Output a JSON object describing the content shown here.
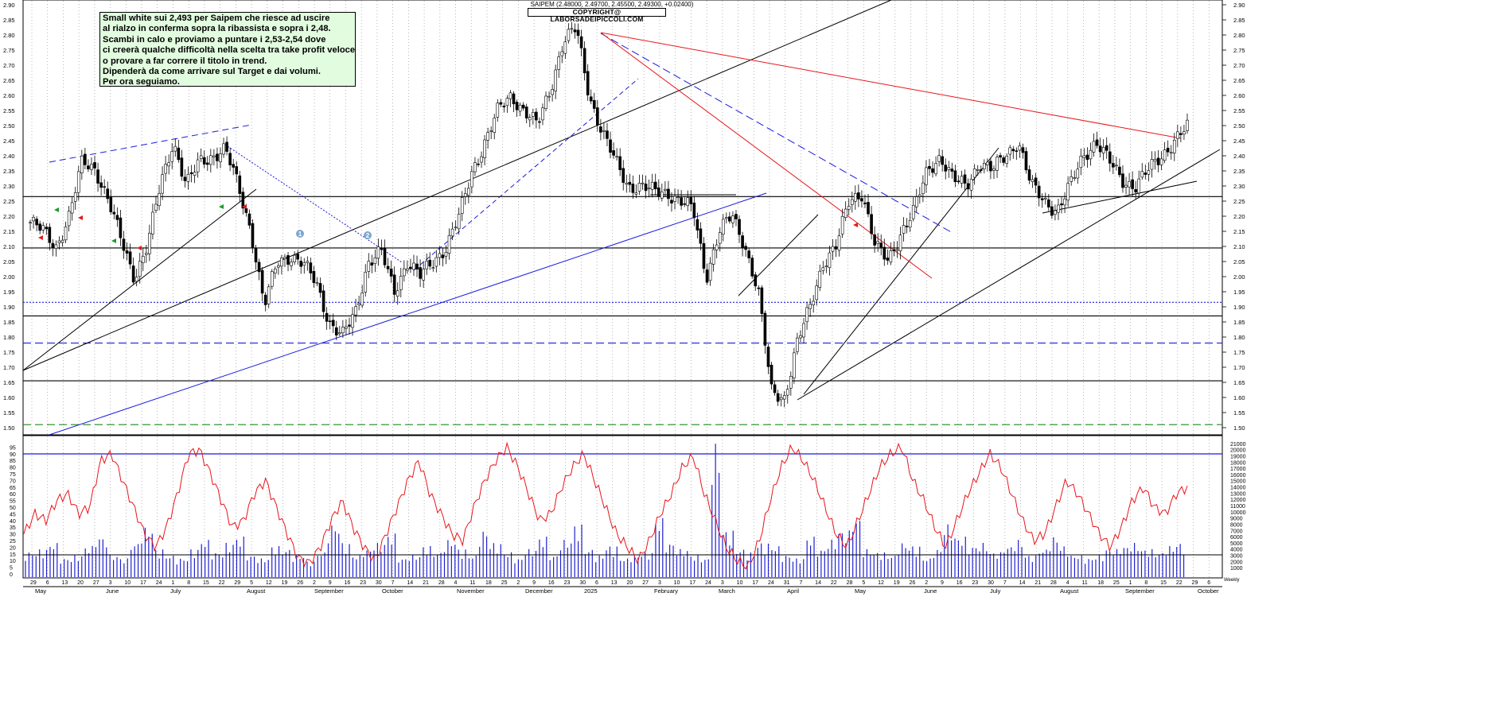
{
  "header": {
    "quote_line": "SAIPEM (2.48000, 2.49700, 2.45500, 2.49300, +0.02400)",
    "copyright": "COPYRIGHT@ LABORSADEIPICCOLI.COM"
  },
  "note": {
    "lines": [
      "Small white sui 2,493 per Saipem che riesce ad uscire",
      "al rialzo in conferma sopra la ribassista e sopra i 2,48.",
      "Scambi in calo e proviamo a puntare i 2,53-2,54 dove",
      "ci creerà qualche difficoltà nella scelta tra take profit veloce",
      "o provare a far correre il titolo in trend.",
      "Dipenderà da come arrivare sul Target e dai volumi.",
      "Per ora seguiamo."
    ]
  },
  "colors": {
    "trend_black": "#000000",
    "trend_red": "#e8151b",
    "trend_blue": "#1a1ae0",
    "green_line": "#1b8a1b",
    "indicator_red": "#e8151b",
    "volume_blue": "#2020d0",
    "note_bg": "#e2fce0"
  },
  "chart_data": [
    {
      "type": "candlestick",
      "title": "SAIPEM",
      "ylim": [
        1.5,
        2.9
      ],
      "y_ticks": [
        "2.90",
        "2.85",
        "2.80",
        "2.75",
        "2.70",
        "2.65",
        "2.60",
        "2.55",
        "2.50",
        "2.45",
        "2.40",
        "2.35",
        "2.30",
        "2.25",
        "2.20",
        "2.15",
        "2.10",
        "2.05",
        "2.00",
        "1.95",
        "1.90",
        "1.85",
        "1.80",
        "1.75",
        "1.70",
        "1.65",
        "1.60",
        "1.55",
        "1.50"
      ],
      "price_path": [
        2.18,
        2.15,
        2.1,
        2.2,
        2.38,
        2.36,
        2.25,
        2.12,
        2.0,
        2.1,
        2.3,
        2.45,
        2.3,
        2.38,
        2.4,
        2.42,
        2.3,
        2.15,
        1.9,
        2.05,
        2.07,
        2.04,
        1.98,
        1.85,
        1.8,
        1.88,
        2.05,
        2.08,
        1.95,
        2.05,
        2.0,
        2.05,
        2.1,
        2.2,
        2.35,
        2.45,
        2.55,
        2.6,
        2.55,
        2.5,
        2.62,
        2.78,
        2.82,
        2.6,
        2.48,
        2.38,
        2.3,
        2.3,
        2.28,
        2.28,
        2.25,
        2.22,
        2.0,
        2.15,
        2.2,
        2.1,
        1.95,
        1.62,
        1.6,
        1.78,
        1.9,
        2.05,
        2.1,
        2.25,
        2.28,
        2.1,
        2.05,
        2.15,
        2.22,
        2.35,
        2.4,
        2.32,
        2.3,
        2.38,
        2.35,
        2.4,
        2.45,
        2.3,
        2.25,
        2.22,
        2.3,
        2.4,
        2.45,
        2.38,
        2.32,
        2.3,
        2.35,
        2.4,
        2.45,
        2.493
      ],
      "horizontal_levels": [
        {
          "value": 2.265,
          "style": "solid-black"
        },
        {
          "value": 2.095,
          "style": "solid-black"
        },
        {
          "value": 1.915,
          "style": "dotted-blue"
        },
        {
          "value": 1.87,
          "style": "solid-black"
        },
        {
          "value": 1.78,
          "style": "dashed-blue"
        },
        {
          "value": 1.655,
          "style": "solid-black"
        },
        {
          "value": 1.51,
          "style": "dashed-green"
        }
      ],
      "markers": [
        "1",
        "2"
      ]
    },
    {
      "type": "line",
      "name": "oscillator",
      "ylim": [
        0,
        100
      ],
      "y_ticks": [
        "95",
        "90",
        "85",
        "80",
        "75",
        "70",
        "65",
        "60",
        "55",
        "50",
        "45",
        "40",
        "35",
        "30",
        "25",
        "20",
        "15",
        "10",
        "5",
        "0"
      ],
      "reference_lines": [
        90,
        15
      ],
      "values": [
        30,
        45,
        40,
        55,
        60,
        45,
        50,
        85,
        90,
        70,
        50,
        30,
        20,
        35,
        60,
        90,
        93,
        75,
        55,
        35,
        40,
        60,
        70,
        50,
        30,
        12,
        8,
        20,
        40,
        55,
        35,
        20,
        10,
        30,
        50,
        70,
        85,
        60,
        45,
        30,
        25,
        50,
        70,
        85,
        95,
        80,
        60,
        40,
        45,
        65,
        80,
        90,
        70,
        50,
        30,
        20,
        10,
        25,
        45,
        60,
        80,
        88,
        60,
        40,
        20,
        10,
        5,
        25,
        55,
        80,
        95,
        85,
        70,
        50,
        30,
        20,
        40,
        60,
        80,
        90,
        95,
        70,
        55,
        35,
        20,
        40,
        60,
        75,
        90,
        80,
        60,
        40,
        25,
        30,
        50,
        70,
        60,
        45,
        30,
        20,
        35,
        55,
        65,
        50,
        45,
        60,
        65
      ]
    },
    {
      "type": "bar",
      "name": "volume",
      "ylim": [
        0,
        22000
      ],
      "y_ticks": [
        "21000",
        "20000",
        "19000",
        "18000",
        "17000",
        "16000",
        "15000",
        "14000",
        "13000",
        "12000",
        "11000",
        "10000",
        "9000",
        "8000",
        "7000",
        "6000",
        "5000",
        "4000",
        "3000",
        "2000",
        "1000"
      ],
      "values": [
        3500,
        4000,
        5000,
        2500,
        3000,
        4500,
        6000,
        3000,
        2500,
        5000,
        7500,
        4000,
        3000,
        2500,
        4000,
        5500,
        3500,
        5000,
        6000,
        3000,
        2500,
        4500,
        4000,
        3000,
        2000,
        3500,
        8000,
        5000,
        3000,
        4000,
        5000,
        6500,
        2500,
        3000,
        4500,
        3500,
        5500,
        4000,
        3000,
        7000,
        5000,
        3500,
        2500,
        4000,
        6000,
        3000,
        5500,
        8000,
        4000,
        3000,
        4500,
        2500,
        3000,
        3500,
        9000,
        5000,
        4000,
        3000,
        2500,
        21000,
        7000,
        4000,
        3500,
        5000,
        4500,
        3000,
        2500,
        6000,
        4000,
        5500,
        7000,
        9000,
        4000,
        3500,
        3000,
        5000,
        4500,
        2500,
        4000,
        8000,
        6000,
        4500,
        5000,
        3500,
        4500,
        5500,
        3000,
        4000,
        6000,
        4500,
        3000,
        2500,
        3000,
        4000,
        4500,
        5000,
        4000,
        3500,
        4500,
        5000
      ]
    },
    {
      "type": "axis",
      "x_tick_numbers": [
        "29",
        "6",
        "13",
        "20",
        "27",
        "3",
        "10",
        "17",
        "24",
        "1",
        "8",
        "15",
        "22",
        "29",
        "5",
        "12",
        "19",
        "26",
        "2",
        "9",
        "16",
        "23",
        "30",
        "7",
        "14",
        "21",
        "28",
        "4",
        "11",
        "18",
        "25",
        "2",
        "9",
        "16",
        "23",
        "30",
        "6",
        "13",
        "20",
        "27",
        "3",
        "10",
        "17",
        "24",
        "3",
        "10",
        "17",
        "24",
        "31",
        "7",
        "14",
        "22",
        "28",
        "5",
        "12",
        "19",
        "26",
        "2",
        "9",
        "16",
        "23",
        "30",
        "7",
        "14",
        "21",
        "28",
        "4",
        "11",
        "18",
        "25",
        "1",
        "8",
        "15",
        "22",
        "29",
        "6"
      ],
      "x_month_labels": [
        "May",
        "June",
        "July",
        "August",
        "September",
        "October",
        "November",
        "December",
        "2025",
        "February",
        "March",
        "April",
        "May",
        "June",
        "July",
        "August",
        "September",
        "October"
      ],
      "corner_label": "Weekly"
    }
  ]
}
